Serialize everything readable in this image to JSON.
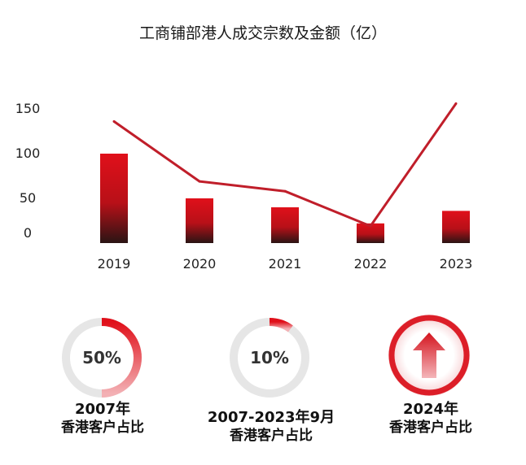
{
  "chart_data": {
    "type": "bar",
    "title": "工商铺部港人成交宗数及金额（亿）",
    "categories": [
      "2019",
      "2020",
      "2021",
      "2022",
      "2023"
    ],
    "yticks": [
      0,
      50,
      100,
      150
    ],
    "series": [
      {
        "type": "bar",
        "values": [
          100,
          50,
          40,
          22,
          36
        ]
      },
      {
        "type": "line",
        "values": [
          136,
          69,
          58,
          19,
          156
        ]
      }
    ],
    "colors": {
      "bar_top": "#e0101a",
      "bar_bottom": "#2a1414",
      "line": "#c01e2a"
    }
  },
  "stats": [
    {
      "percent_text": "50%",
      "fill_fraction": 0.5,
      "line1": "2007年",
      "line2": "香港客户占比"
    },
    {
      "percent_text": "10%",
      "fill_fraction": 0.1,
      "line1": "2007-2023年9月",
      "line2": "香港客户占比"
    },
    {
      "icon": "up-arrow-icon",
      "line1": "2024年",
      "line2": "香港客户占比"
    }
  ]
}
